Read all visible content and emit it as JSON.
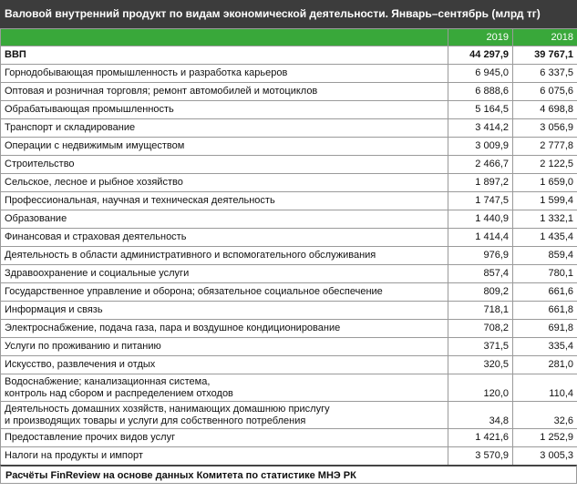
{
  "title": "Валовой внутренний продукт по видам экономической деятельности. Январь–сентябрь (млрд тг)",
  "columns": [
    "2019",
    "2018"
  ],
  "total": {
    "label": "ВВП",
    "v2019": "44 297,9",
    "v2018": "39 767,1"
  },
  "rows": [
    {
      "label": "Горнодобывающая промышленность и разработка карьеров",
      "v2019": "6 945,0",
      "v2018": "6 337,5"
    },
    {
      "label": "Оптовая и розничная торговля; ремонт автомобилей и мотоциклов",
      "v2019": "6 888,6",
      "v2018": "6 075,6"
    },
    {
      "label": "Обрабатывающая промышленность",
      "v2019": "5 164,5",
      "v2018": "4 698,8"
    },
    {
      "label": "Транспорт и складирование",
      "v2019": "3 414,2",
      "v2018": "3 056,9"
    },
    {
      "label": "Операции с недвижимым имуществом",
      "v2019": "3 009,9",
      "v2018": "2 777,8"
    },
    {
      "label": "Строительство",
      "v2019": "2 466,7",
      "v2018": "2 122,5"
    },
    {
      "label": "Сельское, лесное и рыбное хозяйство",
      "v2019": "1 897,2",
      "v2018": "1 659,0"
    },
    {
      "label": "Профессиональная, научная и техническая деятельность",
      "v2019": "1 747,5",
      "v2018": "1 599,4"
    },
    {
      "label": "Образование",
      "v2019": "1 440,9",
      "v2018": "1 332,1"
    },
    {
      "label": "Финансовая и страховая деятельность",
      "v2019": "1 414,4",
      "v2018": "1 435,4"
    },
    {
      "label": "Деятельность в области административного и вспомогательного обслуживания",
      "v2019": "976,9",
      "v2018": "859,4"
    },
    {
      "label": "Здравоохранение и социальные услуги",
      "v2019": "857,4",
      "v2018": "780,1"
    },
    {
      "label": "Государственное управление и оборона; обязательное социальное обеспечение",
      "v2019": "809,2",
      "v2018": "661,6"
    },
    {
      "label": "Информация и связь",
      "v2019": "718,1",
      "v2018": "661,8"
    },
    {
      "label": "Электроснабжение, подача газа, пара и воздушное кондиционирование",
      "v2019": "708,2",
      "v2018": "691,8"
    },
    {
      "label": "Услуги по проживанию и питанию",
      "v2019": "371,5",
      "v2018": "335,4"
    },
    {
      "label": "Искусство, развлечения и отдых",
      "v2019": "320,5",
      "v2018": "281,0"
    },
    {
      "label": "Водоснабжение; канализационная система,",
      "label2": "контроль над сбором и распределением отходов",
      "v2019": "120,0",
      "v2018": "110,4"
    },
    {
      "label": "Деятельность домашних хозяйств, нанимающих домашнюю прислугу",
      "label2": "и производящих товары и услуги для собственного потребления",
      "v2019": "34,8",
      "v2018": "32,6"
    },
    {
      "label": "Предоставление прочих видов услуг",
      "v2019": "1 421,6",
      "v2018": "1 252,9"
    },
    {
      "label": "Налоги на продукты и импорт",
      "v2019": "3 570,9",
      "v2018": "3 005,3"
    }
  ],
  "footer": "Расчёты FinReview на основе данных Комитета по статистике МНЭ РК"
}
